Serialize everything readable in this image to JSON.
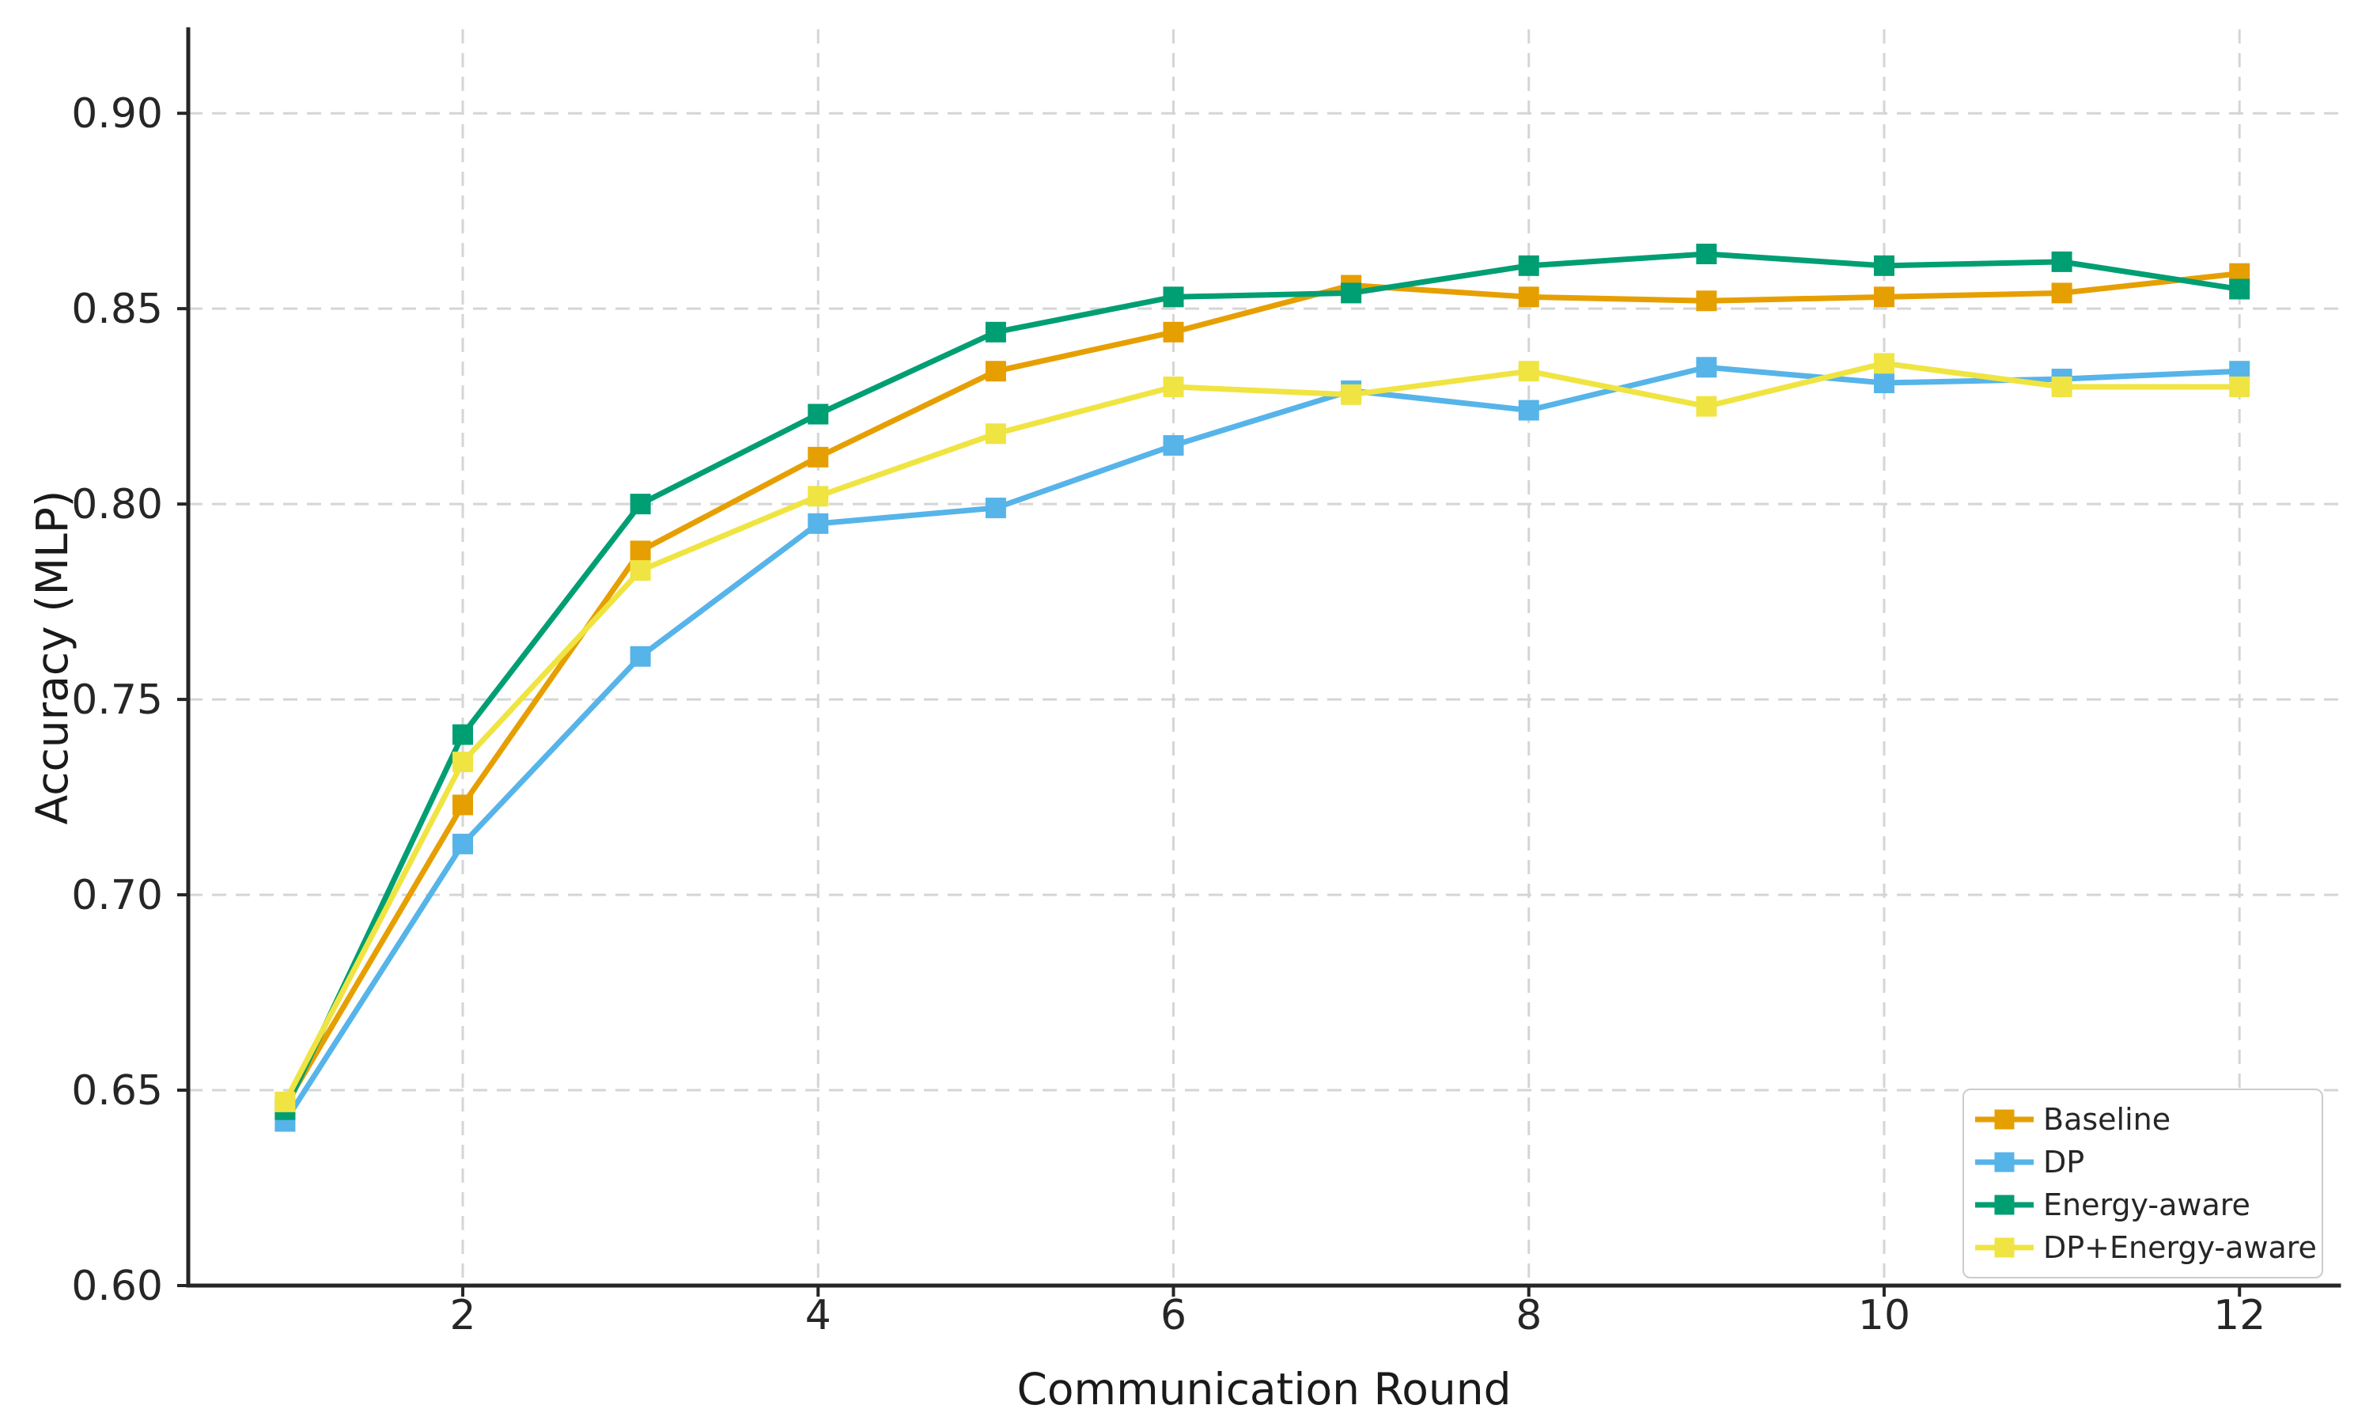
{
  "chart_data": {
    "type": "line",
    "title": "",
    "xlabel": "Communication Round",
    "ylabel": "Accuracy (MLP)",
    "x": [
      1,
      2,
      3,
      4,
      5,
      6,
      7,
      8,
      9,
      10,
      11,
      12
    ],
    "series": [
      {
        "name": "Baseline",
        "color": "#E69F00",
        "values": [
          0.646,
          0.723,
          0.788,
          0.812,
          0.834,
          0.844,
          0.856,
          0.853,
          0.852,
          0.853,
          0.854,
          0.859
        ]
      },
      {
        "name": "DP",
        "color": "#56B4E9",
        "values": [
          0.642,
          0.713,
          0.761,
          0.795,
          0.799,
          0.815,
          0.829,
          0.824,
          0.835,
          0.831,
          0.832,
          0.834
        ]
      },
      {
        "name": "Energy-aware",
        "color": "#009E73",
        "values": [
          0.645,
          0.741,
          0.8,
          0.823,
          0.844,
          0.853,
          0.854,
          0.861,
          0.864,
          0.861,
          0.862,
          0.855
        ]
      },
      {
        "name": "DP+Energy-aware",
        "color": "#F0E442",
        "values": [
          0.647,
          0.734,
          0.783,
          0.802,
          0.818,
          0.83,
          0.828,
          0.834,
          0.825,
          0.836,
          0.83,
          0.83
        ]
      }
    ],
    "x_ticks": [
      2,
      4,
      6,
      8,
      10,
      12
    ],
    "y_ticks": [
      0.6,
      0.65,
      0.7,
      0.75,
      0.8,
      0.85,
      0.9
    ],
    "y_tick_labels": [
      "0.60",
      "0.65",
      "0.70",
      "0.75",
      "0.80",
      "0.85",
      "0.90"
    ],
    "xlim": [
      0.455,
      12.56
    ],
    "ylim": [
      0.6,
      0.9215
    ],
    "grid": "dashed",
    "legend_position": "lower right"
  },
  "colors": {
    "axis": "#262626",
    "tick_text": "#262626",
    "grid": "#d5d5d5",
    "background": "#ffffff"
  }
}
